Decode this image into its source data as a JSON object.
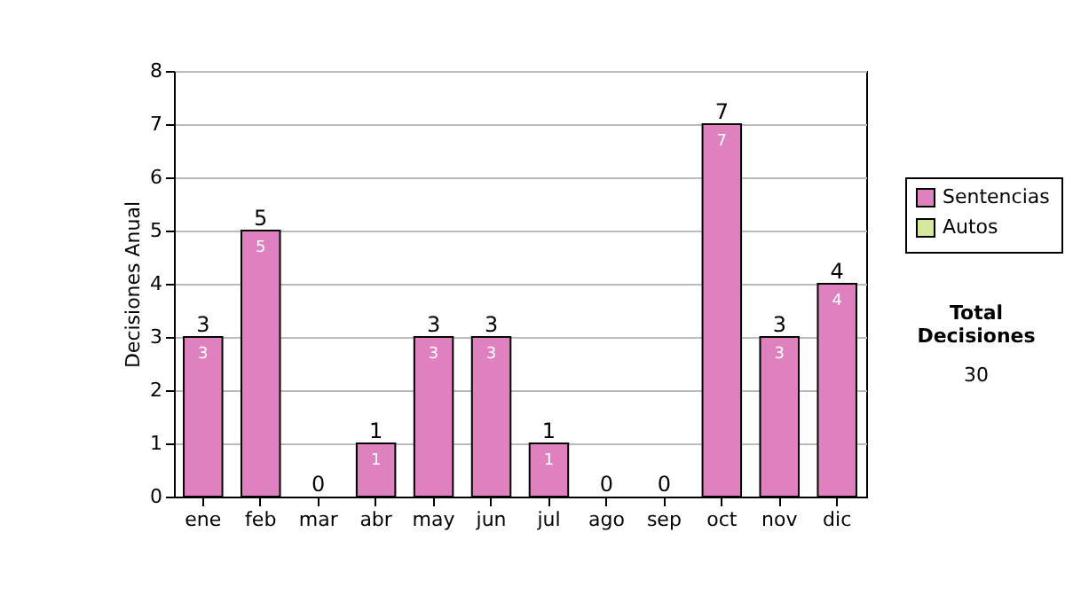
{
  "chart_data": {
    "type": "bar",
    "stacked": true,
    "ylabel": "Decisiones Anual",
    "categories": [
      "ene",
      "feb",
      "mar",
      "abr",
      "may",
      "jun",
      "jul",
      "ago",
      "sep",
      "oct",
      "nov",
      "dic"
    ],
    "series": [
      {
        "name": "Sentencias",
        "color": "#df80bf",
        "values": [
          3,
          5,
          0,
          1,
          3,
          3,
          1,
          0,
          0,
          7,
          3,
          4
        ],
        "value_labels": [
          "3",
          "5",
          null,
          "1",
          "3",
          "3",
          "1",
          null,
          null,
          "7",
          "3",
          "4"
        ]
      },
      {
        "name": "Autos",
        "color": "#d6e89c",
        "values": [
          0,
          0,
          0,
          0,
          0,
          0,
          0,
          0,
          0,
          0,
          0,
          0
        ]
      }
    ],
    "ylim": [
      0,
      8
    ],
    "yticks": [
      0,
      1,
      2,
      3,
      4,
      5,
      6,
      7,
      8
    ],
    "grid": "y",
    "legend": "right",
    "totals": [
      "3",
      "5",
      "0",
      "1",
      "3",
      "3",
      "1",
      "0",
      "0",
      "7",
      "3",
      "4"
    ],
    "annotations": [
      "Total Decisiones",
      "30"
    ]
  }
}
